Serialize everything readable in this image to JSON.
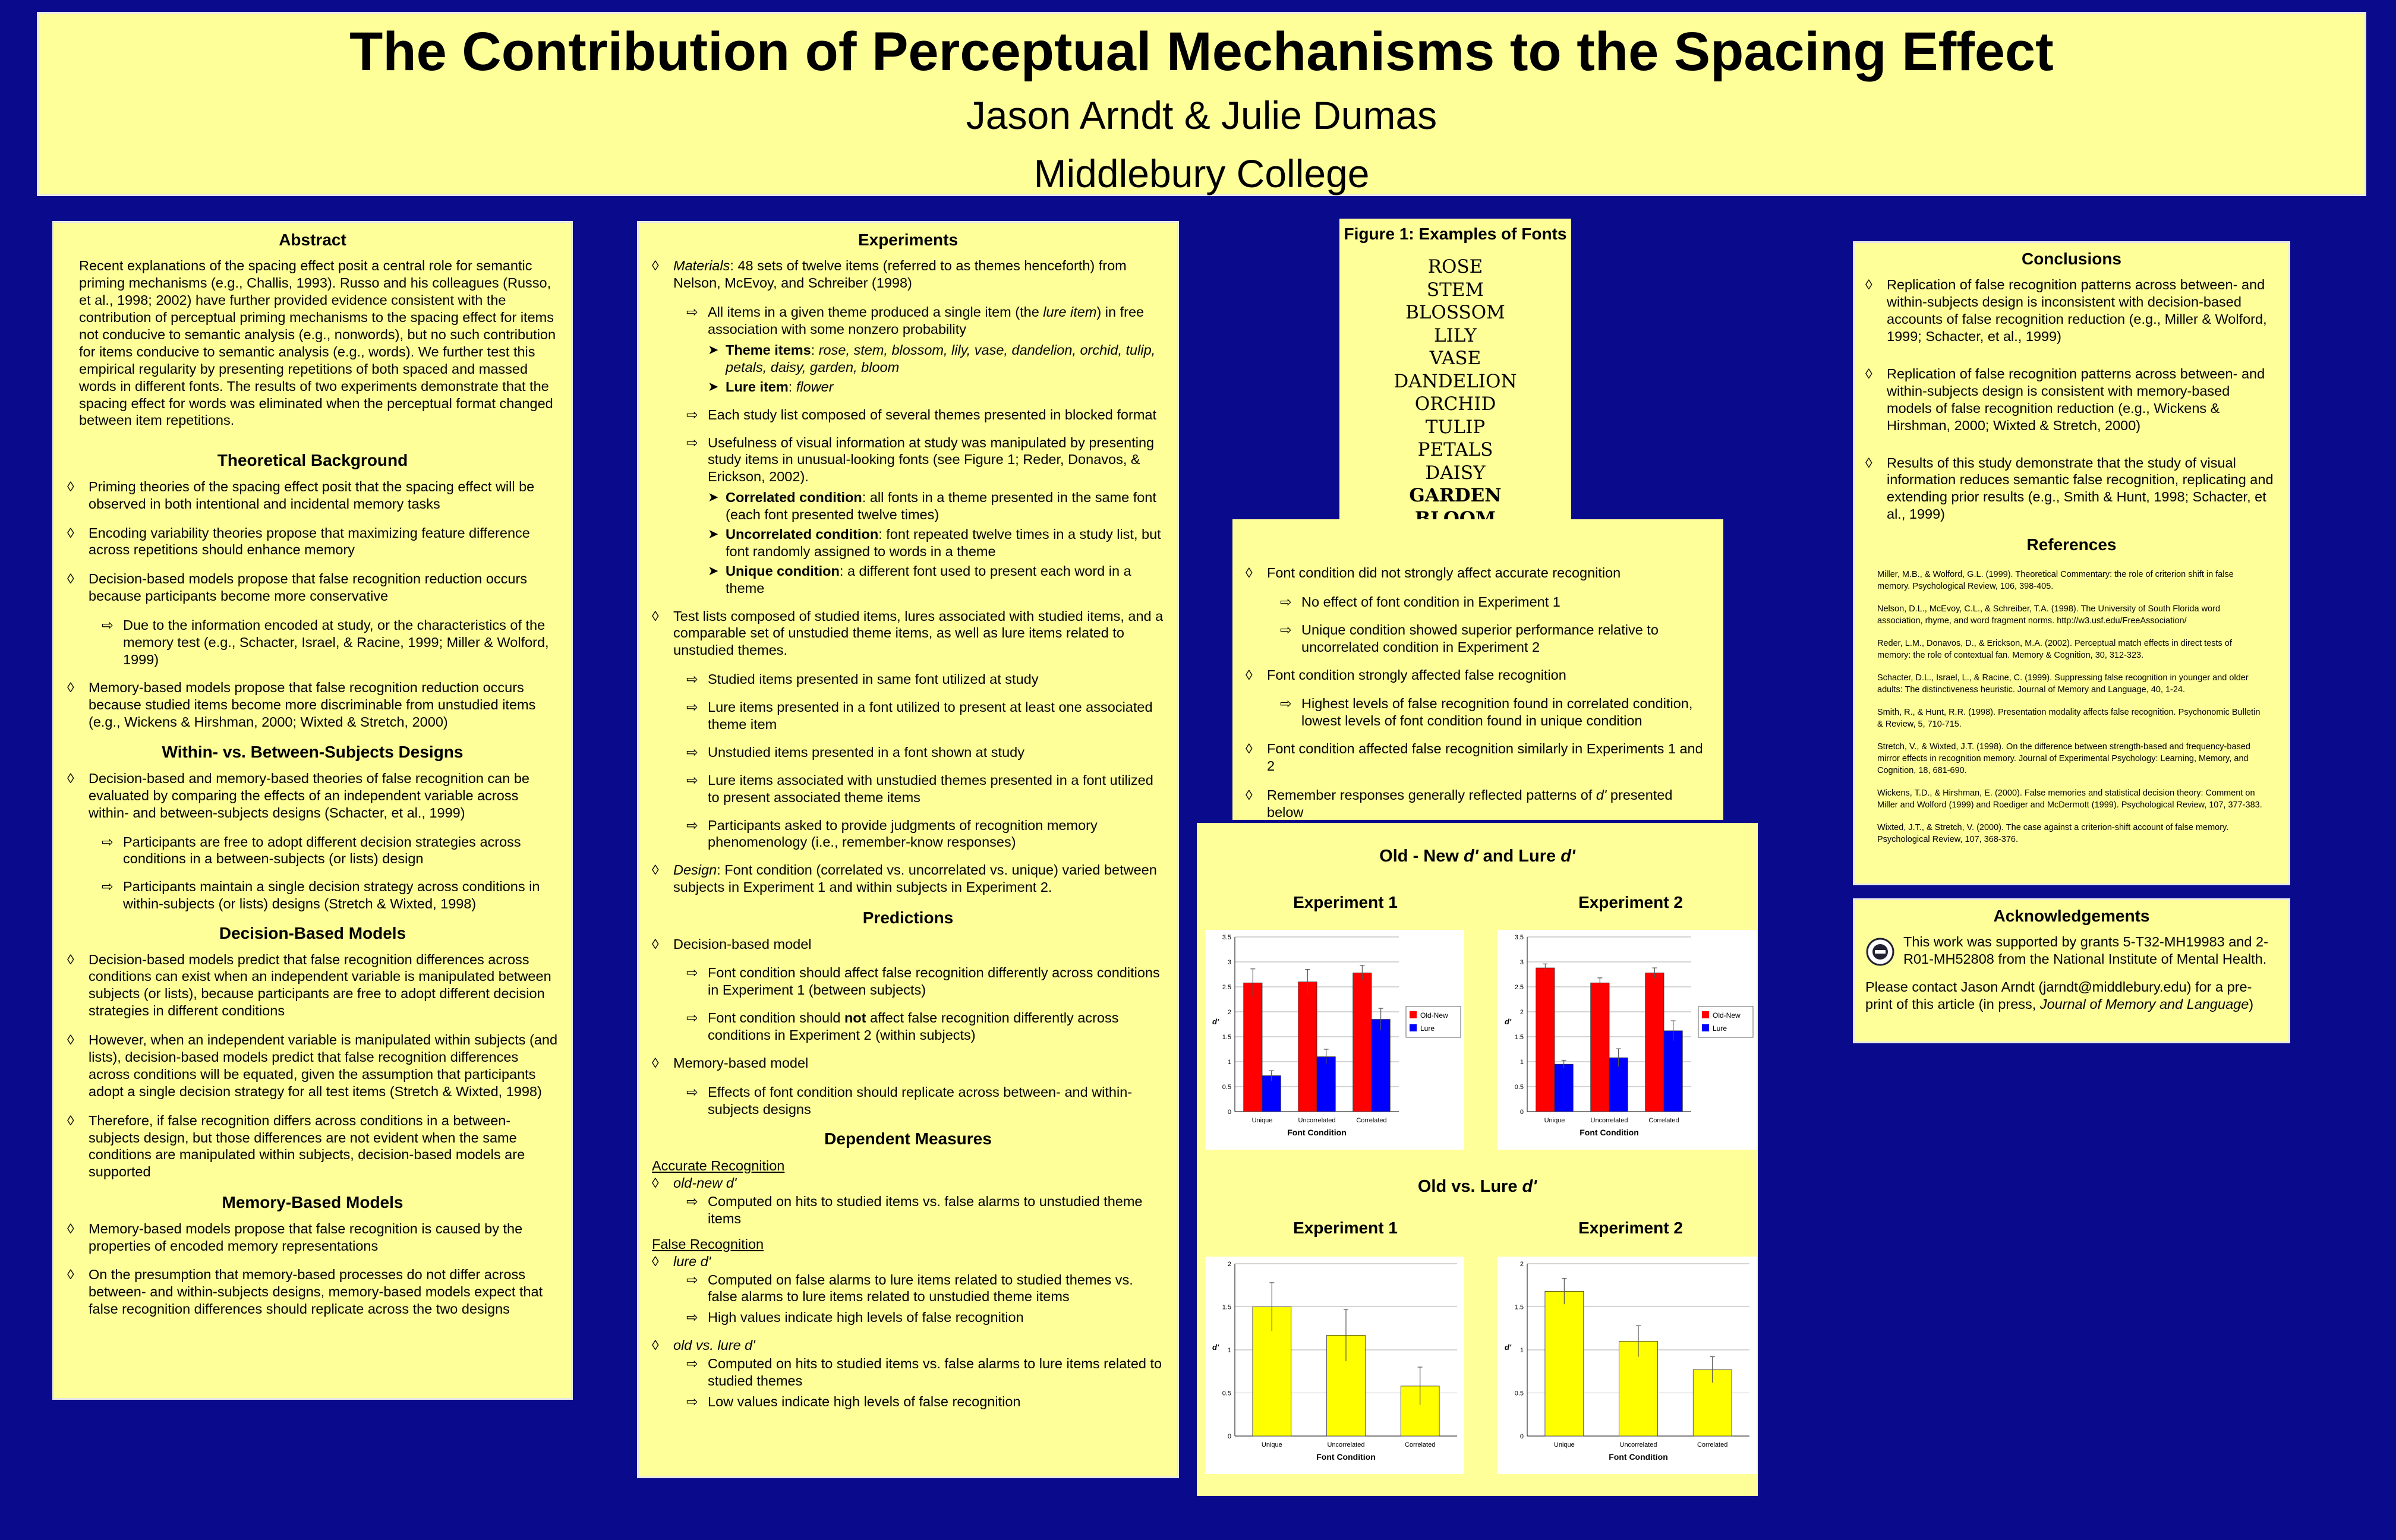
{
  "header": {
    "title": "The Contribution of Perceptual  Mechanisms to the Spacing Effect",
    "authors": "Jason Arndt & Julie Dumas",
    "institution": "Middlebury College"
  },
  "col1": {
    "abstract_title": "Abstract",
    "abstract_text": "Recent explanations of the spacing effect posit a central role for semantic priming mechanisms (e.g., Challis, 1993). Russo and his colleagues (Russo, et al., 1998; 2002) have further provided evidence consistent with the contribution of perceptual priming mechanisms to the spacing effect for items not conducive to semantic analysis (e.g., nonwords), but no such contribution for items conducive to semantic analysis (e.g., words). We further test this empirical regularity by presenting repetitions of both spaced and massed words in different fonts. The results of two experiments demonstrate that the spacing effect for words was eliminated when the perceptual format changed between item repetitions.",
    "tb_title": "Theoretical Background",
    "tb1": "Priming theories of the spacing effect posit that the spacing effect will be observed in both intentional and incidental memory tasks",
    "tb2": "Encoding variability theories propose that maximizing feature difference across repetitions should enhance memory",
    "tb3": "Decision-based models propose that false recognition reduction occurs because participants become more conservative",
    "tb3a": "Due to the information encoded at study, or the characteristics of the memory test (e.g., Schacter, Israel, & Racine, 1999; Miller & Wolford, 1999)",
    "tb4": "Memory-based models propose that false recognition reduction occurs because studied items become more discriminable from unstudied items (e.g., Wickens & Hirshman, 2000; Wixted & Stretch, 2000)",
    "wb_title": "Within- vs. Between-Subjects Designs",
    "wb1": "Decision-based and memory-based theories of false recognition can be evaluated by comparing the effects of an independent variable across within- and between-subjects designs (Schacter, et al., 1999)",
    "wb1a": "Participants are free to adopt different decision strategies across conditions in a between-subjects (or lists) design",
    "wb1b": "Participants maintain a single decision strategy across conditions in within-subjects (or lists) designs (Stretch & Wixted, 1998)",
    "db_title": "Decision-Based Models",
    "db1": "Decision-based models predict that false recognition differences across conditions can exist when an independent variable is manipulated between subjects (or lists), because participants are free to adopt different decision strategies in different conditions",
    "db2": "However, when an independent variable is manipulated within subjects (and lists), decision-based models predict that false recognition differences across conditions will be equated, given the assumption that participants adopt a single decision strategy for all test items (Stretch & Wixted, 1998)",
    "db3": "Therefore, if false recognition differs across conditions in a between-subjects design, but those differences are not evident when the same conditions are manipulated within subjects, decision-based models are supported",
    "mb_title": "Memory-Based Models",
    "mb1": "Memory-based models propose that false recognition is caused by the properties of encoded memory representations",
    "mb2": "On the presumption that memory-based processes do not differ across between- and within-subjects designs, memory-based models expect that false recognition differences should replicate across the two designs"
  },
  "col2": {
    "exp_title": "Experiments",
    "mat_label": "Materials",
    "mat_text": ": 48 sets of twelve items (referred to as themes henceforth) from Nelson, McEvoy, and Schreiber (1998)",
    "m1_a": "All items in a given theme produced a single item (the ",
    "m1_em": "lure item",
    "m1_b": ") in free association with some nonzero probability",
    "theme_label": "Theme items",
    "theme_text": "rose, stem, blossom, lily, vase, dandelion, orchid, tulip, petals, daisy, garden, bloom",
    "lure_label": "Lure item",
    "lure_text": "flower",
    "m2": "Each study list composed of several themes presented in blocked format",
    "m3": "Usefulness of visual information at study was manipulated by presenting study items in unusual-looking fonts (see Figure 1; Reder, Donavos, & Erickson, 2002).",
    "corr_label": "Correlated condition",
    "corr_text": ": all fonts in a theme presented in the same font (each font presented twelve times)",
    "unc_label": "Uncorrelated condition",
    "unc_text": ": font repeated twelve times in a study list, but font randomly assigned to words in a theme",
    "uniq_label": "Unique condition",
    "uniq_text": ": a different font used to present each word in a theme",
    "t1": "Test lists composed of studied items, lures associated with studied items, and a comparable set of unstudied theme items, as well as lure items related to unstudied themes.",
    "t1a": "Studied items presented in same font utilized at study",
    "t1b": "Lure items presented in a font utilized to present at least one associated theme item",
    "t1c": "Unstudied items presented in a font shown at study",
    "t1d": "Lure items associated with unstudied themes presented in a font utilized to present associated theme items",
    "t1e": "Participants asked to provide judgments of recognition memory phenomenology (i.e., remember-know responses)",
    "design_label": "Design",
    "design_text": ": Font condition (correlated vs. uncorrelated vs. unique) varied between subjects in Experiment 1 and within subjects in Experiment 2.",
    "pred_title": "Predictions",
    "p1": "Decision-based model",
    "p1a": "Font condition should affect false recognition differently across conditions in Experiment 1 (between subjects)",
    "p1b_a": "Font condition should ",
    "p1b_b": "not",
    "p1b_c": " affect false recognition differently across conditions in Experiment 2 (within subjects)",
    "p2": "Memory-based model",
    "p2a": "Effects of font condition should replicate across between- and within-subjects designs",
    "dm_title": "Dependent Measures",
    "acc_title": "Accurate Recognition",
    "acc1": "old-new d'",
    "acc1a": "Computed on hits to studied items vs. false alarms to unstudied theme items",
    "fr_title": "False Recognition",
    "fr1": "lure d'",
    "fr1a": "Computed on false alarms to lure items related to studied themes vs. false alarms to lure items related to unstudied theme items",
    "fr1b": "High values indicate high levels of false recognition",
    "fr2": "old vs. lure d'",
    "fr2a": "Computed on hits to studied items vs. false alarms to lure items related to studied themes",
    "fr2b": "Low values indicate high levels of false recognition"
  },
  "fig1": {
    "title": "Figure 1: Examples of Fonts",
    "words": [
      "ROSE",
      "STEM",
      "BLOSSOM",
      "LILY",
      "VASE",
      "DANDELION",
      "ORCHID",
      "TULIP",
      "PETALS",
      "DAISY",
      "GARDEN",
      "BLOOM"
    ]
  },
  "results": {
    "r1": "Font condition did not strongly affect accurate recognition",
    "r1a": "No effect of font condition in Experiment 1",
    "r1b": "Unique condition showed superior performance relative to uncorrelated condition in Experiment 2",
    "r2": "Font condition strongly affected false recognition",
    "r2a": "Highest levels of false recognition found in correlated condition, lowest levels of font condition found in unique condition",
    "r3": "Font condition affected false recognition similarly in Experiments 1 and 2",
    "r4_a": "Remember responses generally reflected patterns of ",
    "r4_em": "d'",
    "r4_b": " presented below"
  },
  "charts_panel": {
    "title1_a": "Old - New ",
    "title1_em": "d'",
    "title1_b": " and Lure ",
    "title1_em2": "d'",
    "title2_a": "Old vs. Lure ",
    "title2_em": "d'",
    "exp1": "Experiment 1",
    "exp2": "Experiment 2"
  },
  "chart_data": [
    {
      "type": "bar",
      "title": "Experiment 1",
      "categories": [
        "Unique",
        "Uncorrelated",
        "Correlated"
      ],
      "series": [
        {
          "name": "Old-New",
          "values": [
            2.58,
            2.6,
            2.78
          ],
          "errors": [
            0.28,
            0.25,
            0.15
          ],
          "color": "#ff0000"
        },
        {
          "name": "Lure",
          "values": [
            0.72,
            1.1,
            1.85
          ],
          "errors": [
            0.1,
            0.15,
            0.22
          ],
          "color": "#0000ff"
        }
      ],
      "xlabel": "Font Condition",
      "ylabel": "d'",
      "ylim": [
        0,
        3.5
      ],
      "yticks": [
        "0",
        "0.5",
        "1",
        "1.5",
        "2",
        "2.5",
        "3",
        "3.5"
      ]
    },
    {
      "type": "bar",
      "title": "Experiment 2",
      "categories": [
        "Unique",
        "Uncorrelated",
        "Correlated"
      ],
      "series": [
        {
          "name": "Old-New",
          "values": [
            2.88,
            2.58,
            2.78
          ],
          "errors": [
            0.08,
            0.1,
            0.1
          ],
          "color": "#ff0000"
        },
        {
          "name": "Lure",
          "values": [
            0.95,
            1.08,
            1.62
          ],
          "errors": [
            0.08,
            0.18,
            0.2
          ],
          "color": "#0000ff"
        }
      ],
      "xlabel": "Font Condition",
      "ylabel": "d'",
      "ylim": [
        0,
        3.5
      ],
      "yticks": [
        "0",
        "0.5",
        "1",
        "1.5",
        "2",
        "2.5",
        "3",
        "3.5"
      ]
    },
    {
      "type": "bar",
      "title": "Experiment 1",
      "categories": [
        "Unique",
        "Uncorrelated",
        "Correlated"
      ],
      "series": [
        {
          "name": "",
          "values": [
            1.5,
            1.17,
            0.58
          ],
          "errors": [
            0.28,
            0.3,
            0.22
          ],
          "color": "#ffff00"
        }
      ],
      "xlabel": "Font Condition",
      "ylabel": "d'",
      "ylim": [
        0,
        2
      ],
      "yticks": [
        "0",
        "0.5",
        "1",
        "1.5",
        "2"
      ]
    },
    {
      "type": "bar",
      "title": "Experiment 2",
      "categories": [
        "Unique",
        "Uncorrelated",
        "Correlated"
      ],
      "series": [
        {
          "name": "",
          "values": [
            1.68,
            1.1,
            0.77
          ],
          "errors": [
            0.15,
            0.18,
            0.15
          ],
          "color": "#ffff00"
        }
      ],
      "xlabel": "Font Condition",
      "ylabel": "d'",
      "ylim": [
        0,
        2
      ],
      "yticks": [
        "0",
        "0.5",
        "1",
        "1.5",
        "2"
      ]
    }
  ],
  "conclusions": {
    "title": "Conclusions",
    "c1": "Replication of false recognition patterns across between- and within-subjects design is inconsistent with decision-based accounts of false recognition reduction (e.g., Miller & Wolford, 1999; Schacter, et al., 1999)",
    "c2": "Replication of false recognition patterns across between- and within-subjects design is consistent with memory-based models of false recognition reduction (e.g., Wickens & Hirshman, 2000; Wixted & Stretch, 2000)",
    "c3": "Results of this study demonstrate that the study of visual information reduces semantic false recognition, replicating and extending prior results (e.g., Smith & Hunt, 1998; Schacter, et al., 1999)",
    "refs_title": "References",
    "refs": [
      "Miller, M.B., & Wolford, G.L. (1999). Theoretical Commentary: the role of criterion shift in false memory. Psychological Review, 106, 398-405.",
      "Nelson, D.L., McEvoy, C.L., & Schreiber, T.A. (1998). The University of South Florida word association, rhyme, and word fragment norms. http://w3.usf.edu/FreeAssociation/",
      "Reder, L.M., Donavos, D., & Erickson, M.A. (2002). Perceptual match effects in direct tests of memory: the role of contextual fan. Memory & Cognition, 30, 312-323.",
      "Schacter, D.L., Israel, L., & Racine, C. (1999). Suppressing false recognition in younger and older adults: The distinctiveness heuristic. Journal of Memory and Language, 40, 1-24.",
      "Smith, R., & Hunt, R.R. (1998). Presentation modality affects false recognition. Psychonomic Bulletin & Review, 5, 710-715.",
      "Stretch, V., & Wixted, J.T. (1998). On the difference between strength-based and frequency-based mirror effects in recognition memory. Journal of Experimental Psychology: Learning, Memory, and Cognition, 18, 681-690.",
      "Wickens, T.D., & Hirshman, E. (2000). False memories and statistical decision theory: Comment on Miller and Wolford (1999) and Roediger and McDermott (1999). Psychological Review, 107, 377-383.",
      "Wixted, J.T., & Stretch, V. (2000). The case against a criterion-shift account of false memory. Psychological Review, 107, 368-376."
    ]
  },
  "ack": {
    "title": "Acknowledgements",
    "text": "This work was supported by grants 5-T32-MH19983 and 2-R01-MH52808 from the National Institute of Mental Health.",
    "contact_a": "Please contact Jason Arndt (jarndt@middlebury.edu) for a pre-print of this article (in press, ",
    "contact_em": "Journal of Memory and Language",
    "contact_b": ")"
  }
}
